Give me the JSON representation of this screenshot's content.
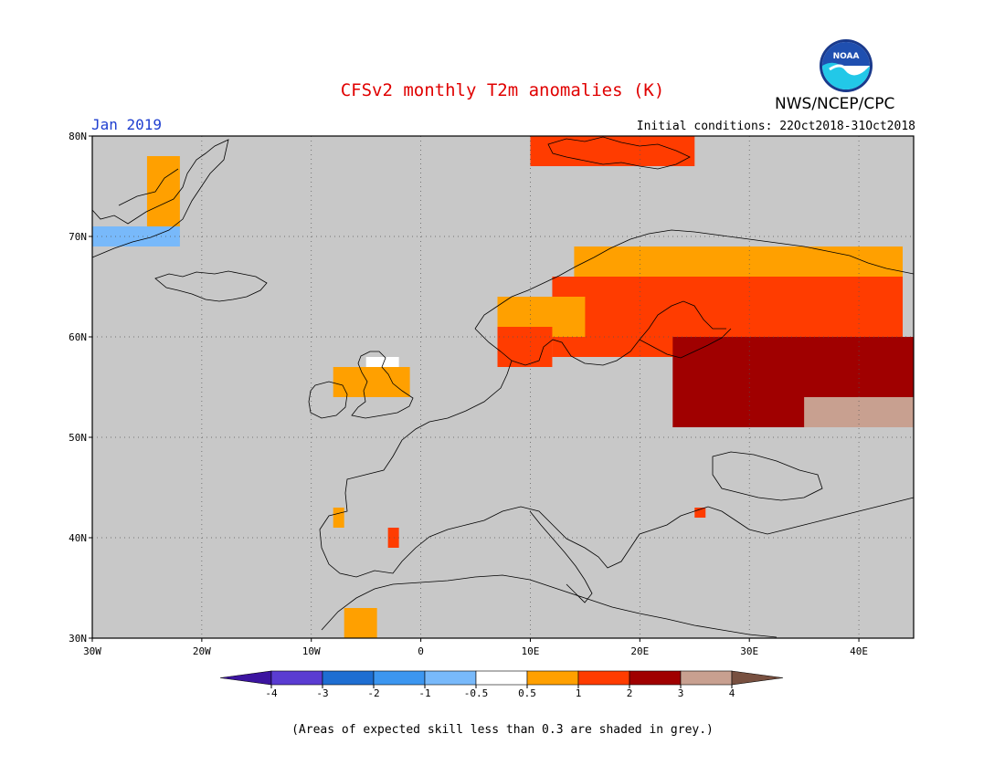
{
  "header": {
    "title": "CFSv2 monthly T2m anomalies (K)",
    "title_color": "#e00000",
    "month_label": "Jan 2019",
    "initial_conditions": "Initial conditions: 22Oct2018-31Oct2018",
    "agency": "NWS/NCEP/CPC",
    "logo_text": "NOAA"
  },
  "map": {
    "background_color": "#c8c8c8",
    "lon_range": [
      -30,
      45
    ],
    "lat_range": [
      30,
      80
    ],
    "lat_ticks": [
      {
        "value": 80,
        "label": "80N"
      },
      {
        "value": 70,
        "label": "70N"
      },
      {
        "value": 60,
        "label": "60N"
      },
      {
        "value": 50,
        "label": "50N"
      },
      {
        "value": 40,
        "label": "40N"
      },
      {
        "value": 30,
        "label": "30N"
      }
    ],
    "lon_ticks": [
      {
        "value": -30,
        "label": "30W"
      },
      {
        "value": -20,
        "label": "20W"
      },
      {
        "value": -10,
        "label": "10W"
      },
      {
        "value": 0,
        "label": "0"
      },
      {
        "value": 10,
        "label": "10E"
      },
      {
        "value": 20,
        "label": "20E"
      },
      {
        "value": 30,
        "label": "30E"
      },
      {
        "value": 40,
        "label": "40E"
      }
    ],
    "anomaly_regions": [
      {
        "class": "0.5..1",
        "color": "#ffa000",
        "region": "Scandinavia north / NW Russia",
        "lons": [
          14,
          44
        ],
        "lats": [
          64,
          69
        ]
      },
      {
        "class": "1..2",
        "color": "#ff3c00",
        "region": "Finland / western Russia",
        "lons": [
          12,
          44
        ],
        "lats": [
          58,
          66
        ]
      },
      {
        "class": "2..3",
        "color": "#a00000",
        "region": "Western Russia / Baltics",
        "lons": [
          23,
          45
        ],
        "lats": [
          51,
          60
        ]
      },
      {
        "class": "3..4",
        "color": "#c8a090",
        "region": "Southern Russia",
        "lons": [
          35,
          45
        ],
        "lats": [
          51,
          54
        ]
      },
      {
        "class": "1..2",
        "color": "#ff3c00",
        "region": "Svalbard",
        "lons": [
          10,
          25
        ],
        "lats": [
          77,
          80
        ]
      },
      {
        "class": "0.5..1",
        "color": "#ffa000",
        "region": "Norway coast",
        "lons": [
          7,
          15
        ],
        "lats": [
          60,
          64
        ]
      },
      {
        "class": "1..2",
        "color": "#ff3c00",
        "region": "Southern Norway",
        "lons": [
          7,
          12
        ],
        "lats": [
          57,
          61
        ]
      },
      {
        "class": "0.5..1",
        "color": "#ffa000",
        "region": "Greenland east coast",
        "lons": [
          -25,
          -22
        ],
        "lats": [
          71,
          78
        ]
      },
      {
        "class": "0.5..1",
        "color": "#ffa000",
        "region": "Great Britain",
        "lons": [
          -8,
          -1
        ],
        "lats": [
          54,
          57
        ]
      },
      {
        "class": "-0.5..0.5",
        "color": "#ffffff",
        "region": "Scotland",
        "lons": [
          -5,
          -2
        ],
        "lats": [
          57,
          58
        ]
      },
      {
        "class": "0.5..1",
        "color": "#ffa000",
        "region": "NW Iberia",
        "lons": [
          -8,
          -7
        ],
        "lats": [
          41,
          43
        ]
      },
      {
        "class": "1..2",
        "color": "#ff3c00",
        "region": "Central Spain",
        "lons": [
          -3,
          -2
        ],
        "lats": [
          39,
          41
        ]
      },
      {
        "class": "0.5..1",
        "color": "#ffa000",
        "region": "Morocco",
        "lons": [
          -7,
          -4
        ],
        "lats": [
          30,
          33
        ]
      },
      {
        "class": "1..2",
        "color": "#ff3c00",
        "region": "Bulgaria",
        "lons": [
          25,
          26
        ],
        "lats": [
          42,
          43
        ]
      },
      {
        "class": "-1..-0.5",
        "color": "#78b9fa",
        "region": "Greenland coast",
        "lons": [
          -30,
          -22
        ],
        "lats": [
          69,
          71
        ]
      }
    ]
  },
  "colorbar": {
    "colors": [
      "#3c14a0",
      "#5a3cd2",
      "#1e6ed2",
      "#3c96f0",
      "#78b9fa",
      "#ffffff",
      "#ffa000",
      "#ff3c00",
      "#a00000",
      "#c8a090",
      "#785040"
    ],
    "labels": [
      "-4",
      "-3",
      "-2",
      "-1",
      "-0.5",
      "0.5",
      "1",
      "2",
      "3",
      "4"
    ]
  },
  "footnote": "(Areas of expected skill less than 0.3 are shaded in grey.)"
}
